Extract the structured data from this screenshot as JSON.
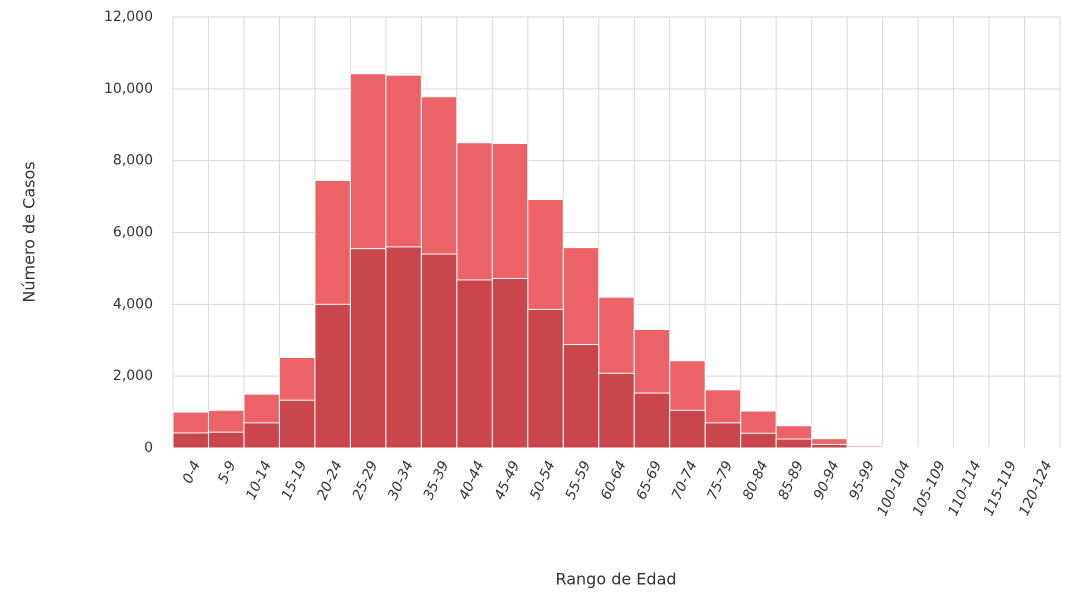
{
  "chart_data": {
    "type": "bar",
    "y_label": "Número de Casos",
    "x_label": "Rango de Edad",
    "categories": [
      "0-4",
      "5-9",
      "10-14",
      "15-19",
      "20-24",
      "25-29",
      "30-34",
      "35-39",
      "40-44",
      "45-49",
      "50-54",
      "55-59",
      "60-64",
      "65-69",
      "70-74",
      "75-79",
      "80-84",
      "85-89",
      "90-94",
      "95-99",
      "100-104",
      "105-109",
      "110-114",
      "115-119",
      "120-124"
    ],
    "series": [
      {
        "color": "#ec6367",
        "values": [
          1000,
          1050,
          1500,
          2520,
          7450,
          10420,
          10380,
          9780,
          8500,
          8480,
          6920,
          5580,
          4200,
          3300,
          2430,
          1620,
          1030,
          620,
          260,
          60,
          20,
          10,
          5,
          3,
          2
        ]
      },
      {
        "color": "#c8464c",
        "values": [
          420,
          440,
          700,
          1330,
          4000,
          5550,
          5600,
          5400,
          4680,
          4720,
          3860,
          2880,
          2080,
          1530,
          1050,
          700,
          410,
          250,
          100,
          20,
          5,
          0,
          0,
          0,
          0
        ]
      }
    ],
    "ylim": [
      0,
      12000
    ],
    "yticks": [
      0,
      {
        "value": 2000,
        "label": "2,000"
      },
      {
        "value": 4000,
        "label": "4,000"
      },
      {
        "value": 6000,
        "label": "6,000"
      },
      {
        "value": 8000,
        "label": "8,000"
      },
      {
        "value": 10000,
        "label": "10,000"
      },
      {
        "value": 12000,
        "label": "12,000"
      }
    ],
    "grid": true
  }
}
